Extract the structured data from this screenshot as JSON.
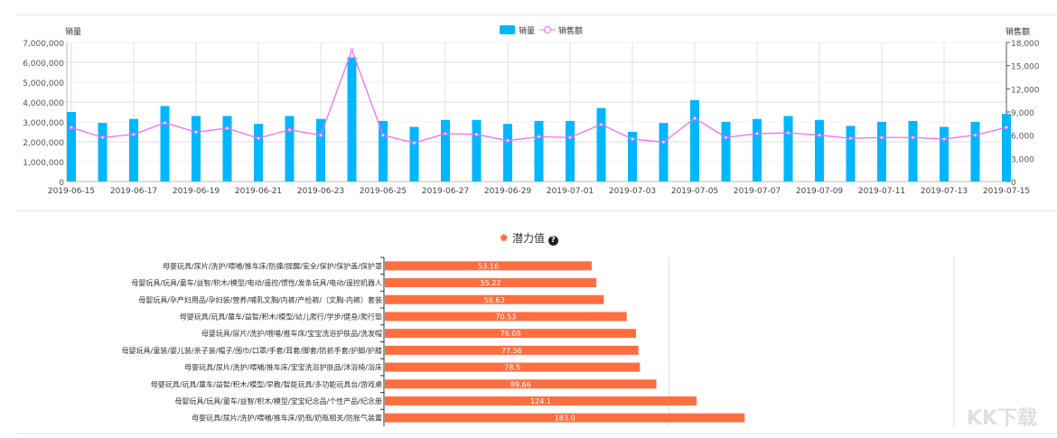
{
  "chart_data": [
    {
      "type": "bar+line",
      "y_left_label": "销量",
      "y_right_label": "销售额",
      "legend": [
        "销量",
        "销售额"
      ],
      "legend_placement": "top-center",
      "ylim_left": [
        0,
        7000000
      ],
      "ylim_right": [
        0,
        18000
      ],
      "y_left_ticks": [
        "0",
        "1,000,000",
        "2,000,000",
        "3,000,000",
        "4,000,000",
        "5,000,000",
        "6,000,000",
        "7,000,000"
      ],
      "y_right_ticks": [
        "0",
        "3,000",
        "6,000",
        "9,000",
        "12,000",
        "15,000",
        "18,000"
      ],
      "x": [
        "2019-06-15",
        "2019-06-16",
        "2019-06-17",
        "2019-06-18",
        "2019-06-19",
        "2019-06-20",
        "2019-06-21",
        "2019-06-22",
        "2019-06-23",
        "2019-06-24",
        "2019-06-25",
        "2019-06-26",
        "2019-06-27",
        "2019-06-28",
        "2019-06-29",
        "2019-06-30",
        "2019-07-01",
        "2019-07-02",
        "2019-07-03",
        "2019-07-04",
        "2019-07-05",
        "2019-07-06",
        "2019-07-07",
        "2019-07-08",
        "2019-07-09",
        "2019-07-10",
        "2019-07-11",
        "2019-07-12",
        "2019-07-13",
        "2019-07-14",
        "2019-07-15"
      ],
      "x_tick_labels": [
        "2019-06-15",
        "2019-06-17",
        "2019-06-19",
        "2019-06-21",
        "2019-06-23",
        "2019-06-25",
        "2019-06-27",
        "2019-06-29",
        "2019-07-01",
        "2019-07-03",
        "2019-07-05",
        "2019-07-07",
        "2019-07-09",
        "2019-07-11",
        "2019-07-13",
        "2019-07-15"
      ],
      "series": [
        {
          "name": "销量",
          "type": "bar",
          "axis": "left",
          "color": "#00b7ff",
          "values": [
            3500000,
            2950000,
            3150000,
            3800000,
            3300000,
            3300000,
            2900000,
            3300000,
            3150000,
            6250000,
            3050000,
            2750000,
            3100000,
            3100000,
            2900000,
            3050000,
            3050000,
            3700000,
            2500000,
            2950000,
            4100000,
            3000000,
            3150000,
            3300000,
            3100000,
            2800000,
            3000000,
            3050000,
            2750000,
            3000000,
            3400000
          ]
        },
        {
          "name": "销售额",
          "type": "line",
          "axis": "right",
          "color": "#f56cf8",
          "values": [
            7000,
            5700,
            6100,
            7600,
            6400,
            6900,
            5600,
            6700,
            6000,
            17000,
            6000,
            5000,
            6200,
            6100,
            5300,
            5800,
            5700,
            7400,
            5500,
            5100,
            8200,
            5700,
            6200,
            6300,
            6000,
            5600,
            5700,
            5700,
            5500,
            6000,
            7000
          ]
        }
      ]
    },
    {
      "type": "bar",
      "orientation": "horizontal",
      "title": "潜力值",
      "x_scale": "log",
      "xlim": [
        10,
        1000
      ],
      "color": "#ff6e40",
      "categories": [
        "母婴玩具/尿片/洗护/喂哺/推车床/防撞/提醒/安全/保护/保护盖/保护罩",
        "母婴玩具/玩具/童车/益智/积木/模型/电动/遥控/惯性/发条玩具/电动/遥控机器人",
        "母婴玩具/孕产妇用品/孕妇装/营养/哺乳文胸/内裤/产检裤/（文胸-内裤）套装",
        "母婴玩具/玩具/童车/益智/积木/模型/幼儿爬行/学步/健身/爬行垫",
        "母婴玩具/尿片/洗护/喂哺/推车床/宝宝洗浴护肤品/洗发帽",
        "母婴玩具/童装/婴儿装/亲子装/帽子/围巾/口罩/手套/耳套/脚套/防抓手套/护脚/护膝",
        "母婴玩具/尿片/洗护/喂哺/推车床/宝宝洗浴护肤品/沐浴椅/浴床",
        "母婴玩具/玩具/童车/益智/积木/模型/早教/智能玩具/多功能玩具台/游戏桌",
        "母婴玩具/玩具/童车/益智/积木/模型/宝宝纪念品/个性产品/纪念册",
        "母婴玩具/尿片/洗护/喂哺/推车床/奶瓶/奶瓶相关/防胀气装置"
      ],
      "values": [
        53.16,
        55.22,
        58.63,
        70.53,
        76.08,
        77.56,
        78.5,
        89.66,
        124.1,
        183.0
      ],
      "value_labels": [
        "53.16",
        "55.22",
        "58.63",
        "70.53",
        "76.08",
        "77.56",
        "78.5",
        "89.66",
        "124.1",
        "183.0"
      ]
    }
  ],
  "icons": {
    "title_icon": "gear-icon",
    "help_icon": "question-circle-icon"
  },
  "watermark": "KK下载 www.kkx.net"
}
